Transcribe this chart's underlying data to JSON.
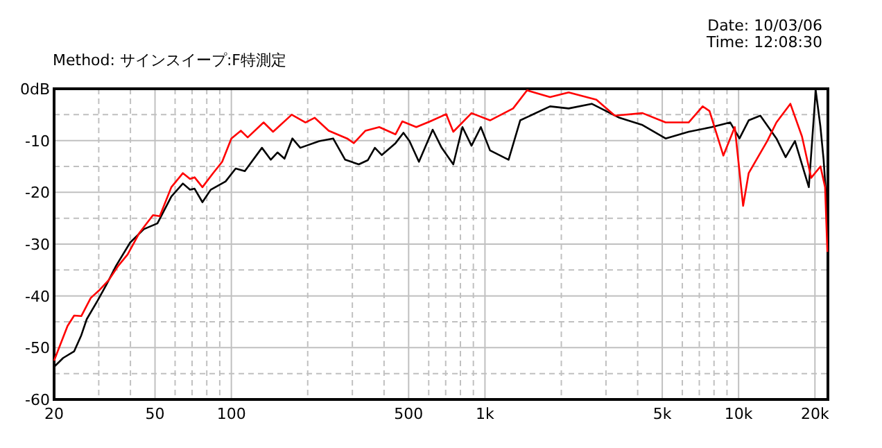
{
  "chart_data": {
    "type": "line",
    "annotations": [
      "Method:  サインスイープ:F特測定",
      "Date: 10/03/06",
      "Time: 12:08:30"
    ],
    "log": "x",
    "grid": true,
    "marker": "none",
    "line_style": "solid",
    "xlim": [
      20,
      22500
    ],
    "xticks": [
      20,
      {
        "value": 30,
        "label": null
      },
      {
        "value": 40,
        "label": null
      },
      50,
      {
        "value": 60,
        "label": null
      },
      {
        "value": 70,
        "label": null
      },
      {
        "value": 80,
        "label": null
      },
      {
        "value": 90,
        "label": null
      },
      100,
      {
        "value": 200,
        "label": null
      },
      {
        "value": 300,
        "label": null
      },
      {
        "value": 400,
        "label": null
      },
      500,
      {
        "value": 600,
        "label": null
      },
      {
        "value": 700,
        "label": null
      },
      {
        "value": 800,
        "label": null
      },
      {
        "value": 900,
        "label": null
      },
      {
        "value": 1000,
        "label": "1k"
      },
      {
        "value": 2000,
        "label": null
      },
      {
        "value": 3000,
        "label": null
      },
      {
        "value": 4000,
        "label": null
      },
      {
        "value": 5000,
        "label": "5k"
      },
      {
        "value": 6000,
        "label": null
      },
      {
        "value": 7000,
        "label": null
      },
      {
        "value": 8000,
        "label": null
      },
      {
        "value": 9000,
        "label": null
      },
      {
        "value": 10000,
        "label": "10k"
      },
      {
        "value": 20000,
        "label": "20k"
      }
    ],
    "ylim": [
      -60,
      0
    ],
    "yticks": [
      {
        "value": 0,
        "label": "0dB"
      },
      {
        "value": -5,
        "label": null
      },
      -10,
      {
        "value": -15,
        "label": null
      },
      -20,
      {
        "value": -25,
        "label": null
      },
      -30,
      {
        "value": -35,
        "label": null
      },
      -40,
      {
        "value": -45,
        "label": null
      },
      -50,
      {
        "value": -55,
        "label": null
      },
      -60
    ],
    "series": [
      {
        "color": "#000000",
        "x": [
          20,
          21.7,
          24.0,
          25.6,
          26.9,
          29.7,
          32.2,
          35.1,
          39.9,
          45.2,
          51.1,
          58.0,
          64.4,
          68.7,
          71.6,
          76.9,
          82.9,
          94.9,
          104,
          113,
          132,
          143,
          152,
          162,
          174,
          187,
          222,
          252,
          281,
          318,
          345,
          368,
          392,
          444,
          477,
          504,
          549,
          622,
          675,
          750,
          815,
          885,
          963,
          1047,
          1239,
          1377,
          1806,
          2138,
          2636,
          3389,
          4180,
          5155,
          6355,
          7835,
          9270,
          10080,
          10960,
          12180,
          14100,
          15330,
          16680,
          18920,
          20140,
          21030,
          21640,
          22390
        ],
        "values": [
          -53.7,
          -52,
          -50.7,
          -47.6,
          -44.5,
          -40.9,
          -37.8,
          -34.2,
          -29.7,
          -27.1,
          -26,
          -20.8,
          -18.3,
          -19.5,
          -19.3,
          -21.9,
          -19.5,
          -17.9,
          -15.4,
          -15.9,
          -11.4,
          -13.7,
          -12.3,
          -13.5,
          -9.6,
          -11.4,
          -10.1,
          -9.6,
          -13.7,
          -14.6,
          -13.8,
          -11.4,
          -12.8,
          -10.5,
          -8.5,
          -10.1,
          -14.1,
          -7.9,
          -11.4,
          -14.6,
          -7.4,
          -11,
          -7.4,
          -11.9,
          -13.7,
          -6.1,
          -3.4,
          -3.8,
          -2.9,
          -5.6,
          -7,
          -9.6,
          -8.3,
          -7.4,
          -6.5,
          -9.6,
          -6.1,
          -5.2,
          -9.6,
          -13.2,
          -10.1,
          -19,
          -0.3,
          -7.4,
          -13.7,
          -24.4
        ]
      },
      {
        "color": "#ff0000",
        "x": [
          20,
          22.6,
          24.0,
          25.6,
          27.9,
          30.3,
          32.9,
          35.8,
          39.0,
          43.3,
          49.1,
          52.2,
          58.0,
          64.4,
          68.7,
          71.6,
          76.9,
          84.7,
          92.0,
          100,
          109,
          116,
          134,
          146,
          173,
          196,
          213,
          242,
          286,
          304,
          338,
          383,
          444,
          472,
          536,
          608,
          703,
          750,
          885,
          1047,
          1291,
          1465,
          1806,
          2138,
          2749,
          3251,
          4180,
          5155,
          6355,
          7215,
          7680,
          8710,
          9660,
          10420,
          10960,
          12970,
          14100,
          16000,
          17780,
          19330,
          21030,
          21930,
          22390
        ],
        "values": [
          -52.5,
          -45.8,
          -43.8,
          -43.9,
          -40.4,
          -38.8,
          -36.9,
          -34.2,
          -32,
          -27.9,
          -24.4,
          -24.6,
          -19,
          -16.3,
          -17.4,
          -17.1,
          -19,
          -16.3,
          -14.1,
          -9.6,
          -8.1,
          -9.4,
          -6.5,
          -8.3,
          -5,
          -6.5,
          -5.6,
          -8.1,
          -9.6,
          -10.5,
          -8.1,
          -7.4,
          -8.8,
          -6.3,
          -7.4,
          -6.3,
          -4.9,
          -8.3,
          -4.7,
          -6.1,
          -3.8,
          -0.3,
          -1.6,
          -0.7,
          -2.1,
          -5.2,
          -4.7,
          -6.5,
          -6.5,
          -3.4,
          -4.3,
          -12.9,
          -7.4,
          -22.6,
          -16.3,
          -10.1,
          -6.5,
          -2.9,
          -9.2,
          -17.2,
          -15,
          -19,
          -31.5
        ]
      }
    ]
  }
}
